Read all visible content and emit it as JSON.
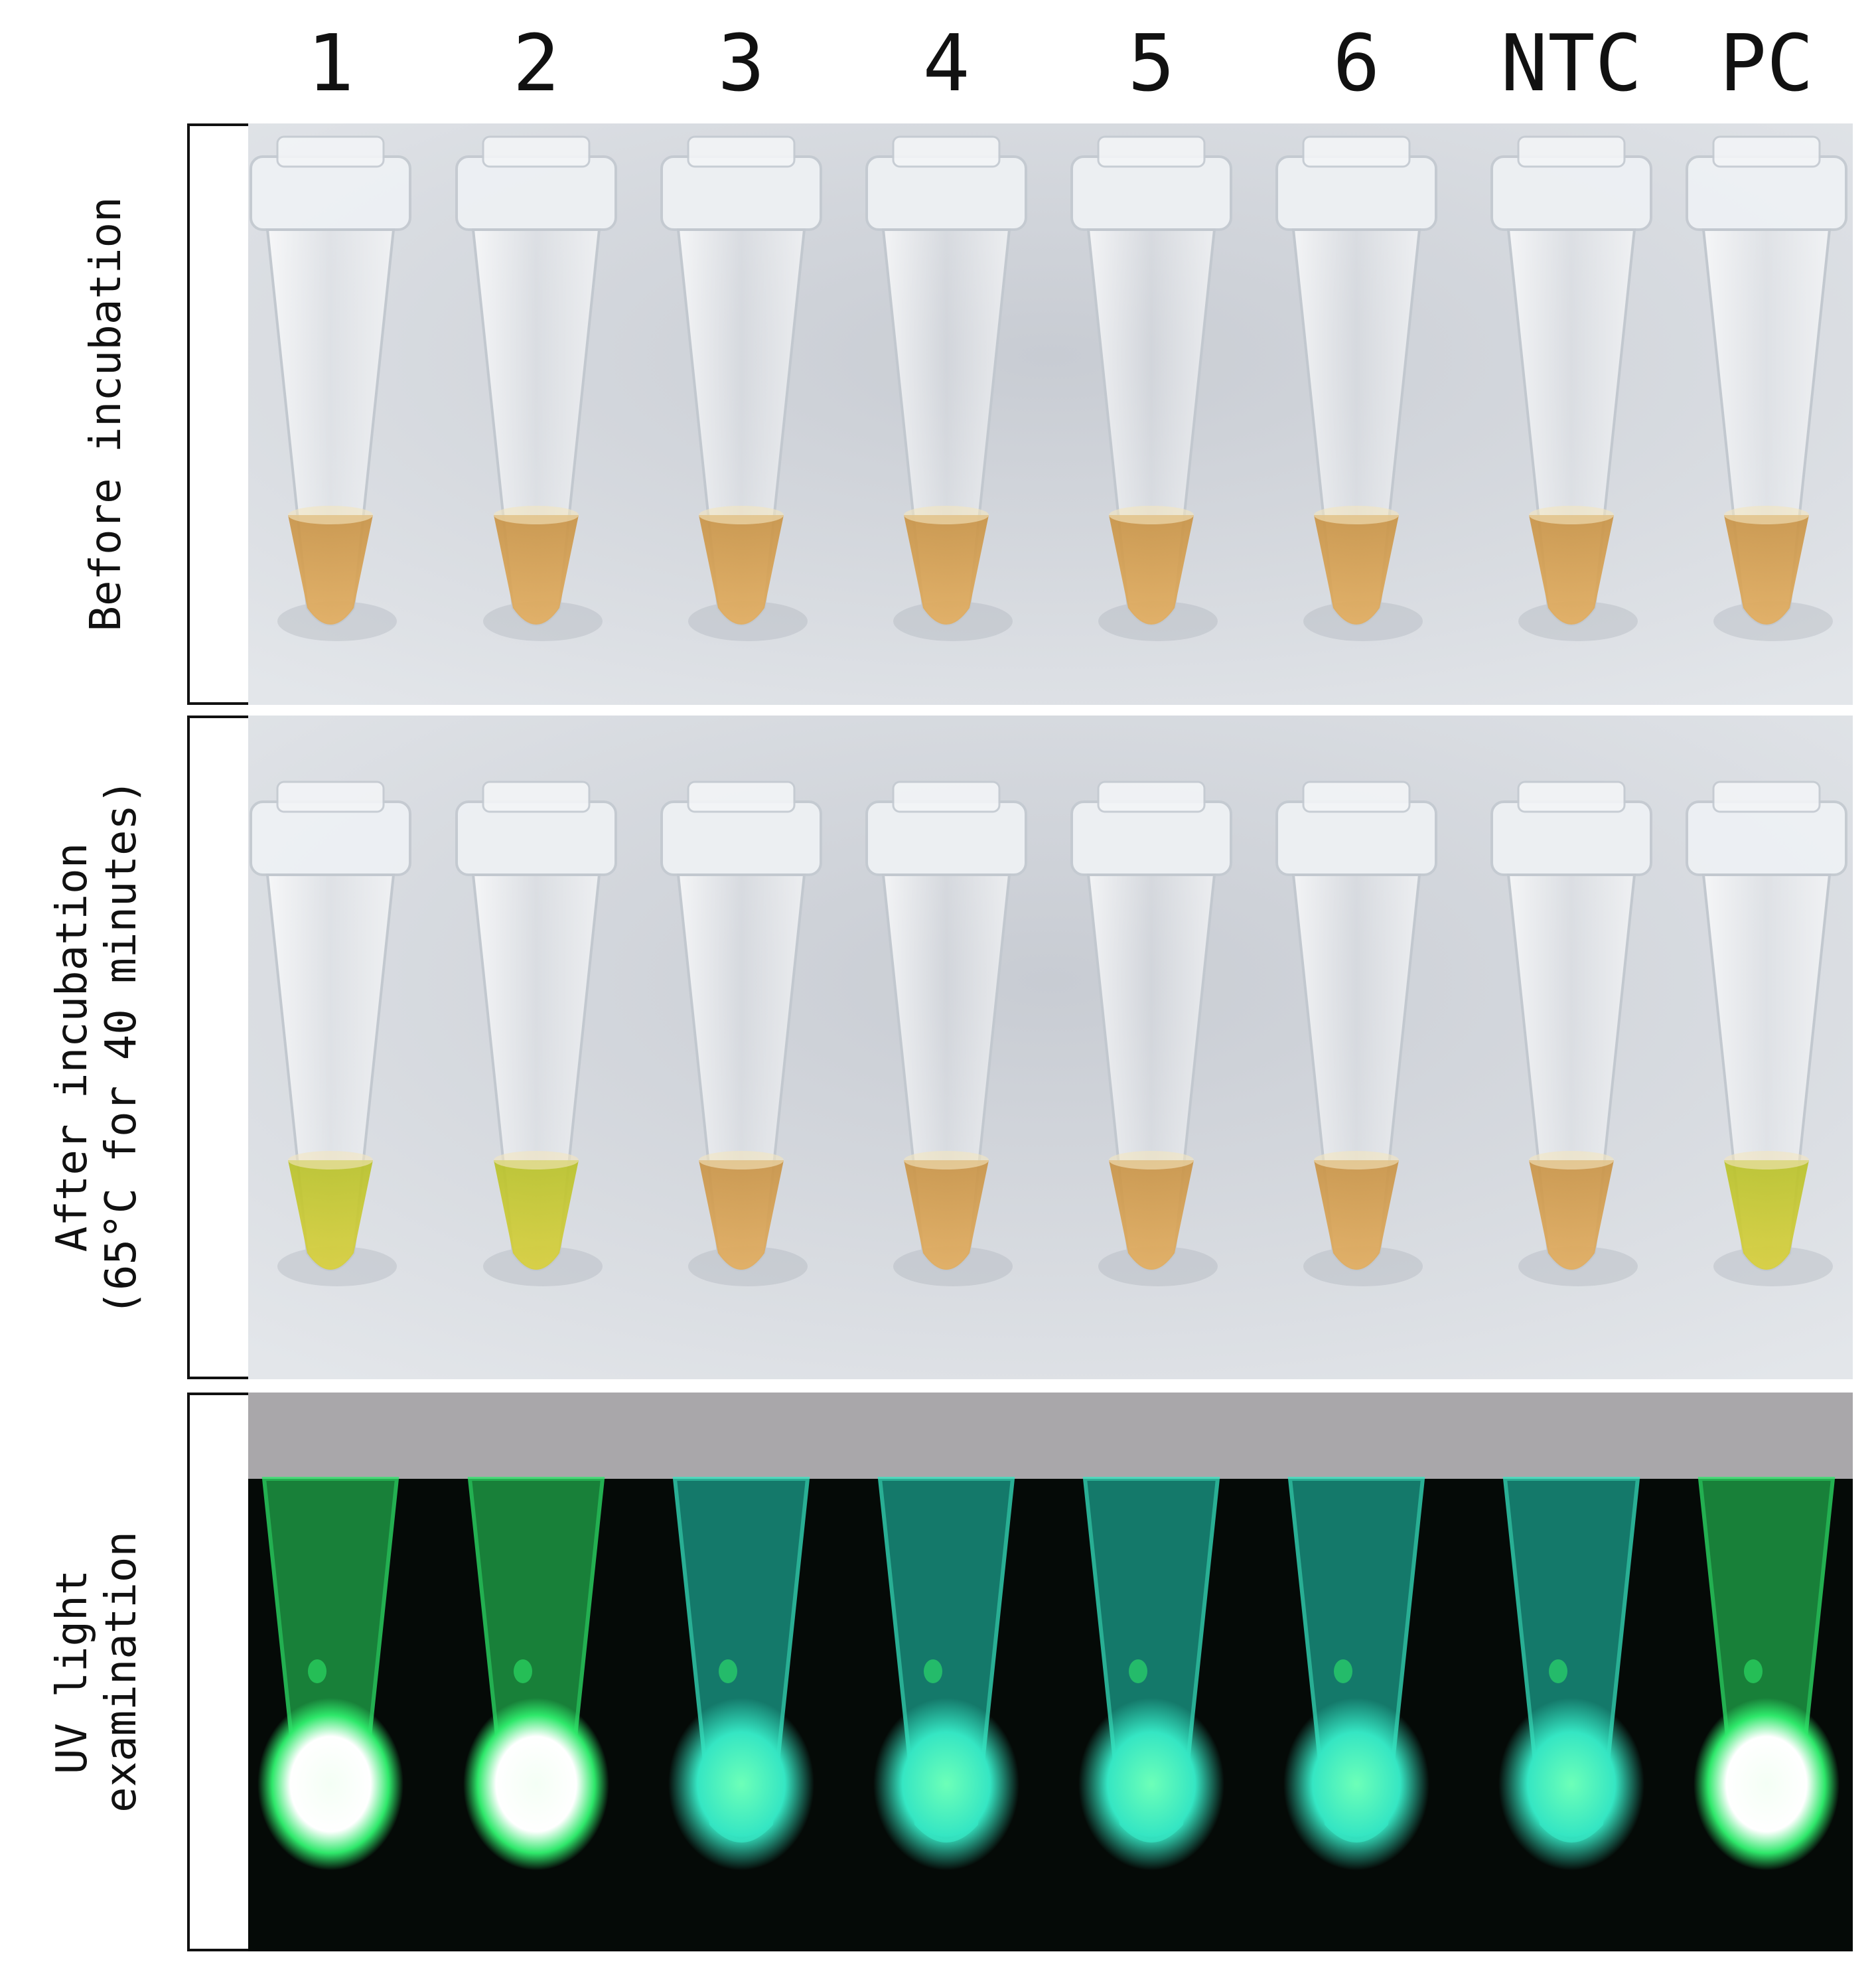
{
  "columns": [
    "1",
    "2",
    "3",
    "4",
    "5",
    "6",
    "NTC",
    "PC"
  ],
  "rows": [
    {
      "label_lines": [
        "Before incubation"
      ]
    },
    {
      "label_lines": [
        "After incubation",
        "(65°C for 40 minutes)"
      ]
    },
    {
      "label_lines": [
        "UV light",
        "examination"
      ]
    }
  ],
  "colors": {
    "background_photo": "#d9dde3",
    "liquid_orange": "#e2ad5f",
    "liquid_yellow_green": "#d8cf3c",
    "uv_background": "#050a07",
    "uv_bright_white": "#f4fff5",
    "uv_green": "#2ee86a",
    "uv_cyan": "#35e6c3"
  },
  "tube_states": {
    "before": [
      "orange",
      "orange",
      "orange",
      "orange",
      "orange",
      "orange",
      "orange",
      "orange"
    ],
    "after": [
      "yellow-green",
      "yellow-green",
      "orange",
      "orange",
      "orange",
      "orange",
      "orange",
      "yellow-green"
    ],
    "uv": [
      "bright",
      "bright",
      "dim",
      "dim",
      "dim",
      "dim",
      "dim",
      "bright"
    ]
  }
}
